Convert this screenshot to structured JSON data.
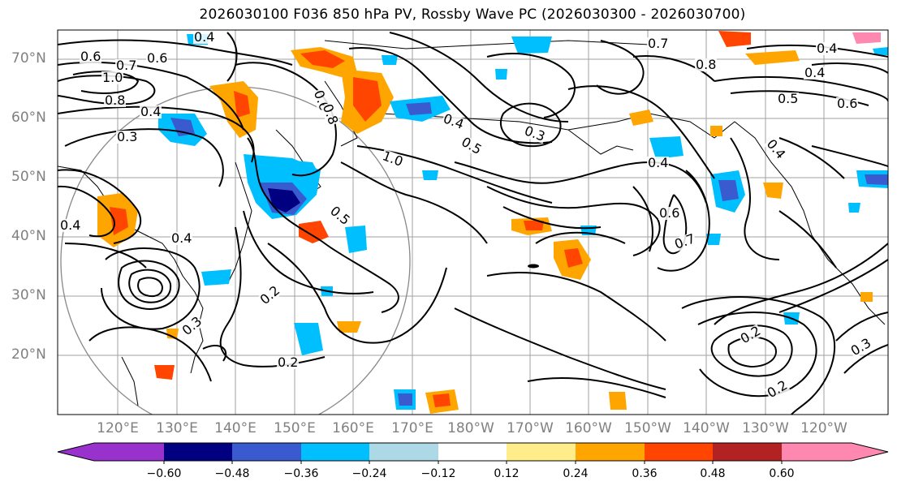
{
  "title": "2026030100 F036 850 hPa PV, Rossby Wave PC (2026030300 - 2026030700)",
  "map": {
    "lat_labels": [
      {
        "text": "70°N",
        "lat": 70
      },
      {
        "text": "60°N",
        "lat": 60
      },
      {
        "text": "50°N",
        "lat": 50
      },
      {
        "text": "40°N",
        "lat": 40
      },
      {
        "text": "30°N",
        "lat": 30
      },
      {
        "text": "20°N",
        "lat": 20
      }
    ],
    "lon_labels": [
      "120°E",
      "130°E",
      "140°E",
      "150°E",
      "160°E",
      "170°E",
      "180°W",
      "170°W",
      "160°W",
      "150°W",
      "140°W",
      "130°W",
      "120°W"
    ],
    "contour_labels": [
      "0.4",
      "0.6",
      "0.7",
      "1.0",
      "0.8",
      "0.4",
      "0.3",
      "0.6",
      "0.8",
      "0.4",
      "0.5",
      "0.6",
      "0.7",
      "0.4",
      "0.6",
      "0.8",
      "1.0",
      "0.4",
      "0.5",
      "0.3",
      "0.4",
      "0.6",
      "0.7",
      "0.4",
      "0.4",
      "0.2",
      "0.2",
      "0.3",
      "0.4",
      "0.5",
      "0.2",
      "0.3",
      "0.2"
    ]
  },
  "colorbar": {
    "colors": [
      "#9932cc",
      "#000080",
      "#3a5bd0",
      "#00bfff",
      "#add8e6",
      "#ffffff",
      "#ffec8b",
      "#ffa500",
      "#ff4500",
      "#b22222",
      "#ff88b0"
    ],
    "ticks": [
      "−0.60",
      "−0.48",
      "−0.36",
      "−0.24",
      "−0.12",
      "0.12",
      "0.24",
      "0.36",
      "0.48",
      "0.60"
    ]
  }
}
